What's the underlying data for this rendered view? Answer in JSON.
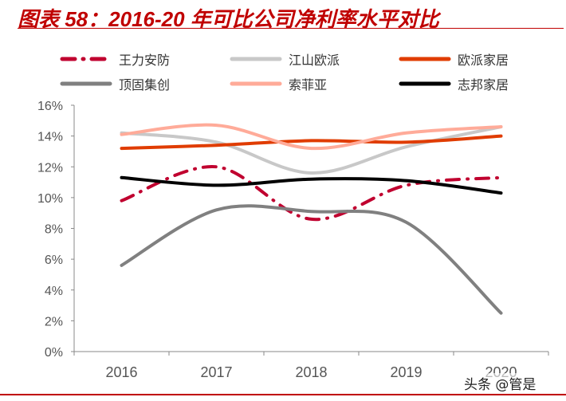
{
  "title": "图表 58：2016-20 年可比公司净利率水平对比",
  "watermark": "头条 @管是",
  "chart_data": {
    "type": "line",
    "title": "图表 58：2016-20 年可比公司净利率水平对比",
    "xlabel": "",
    "ylabel": "",
    "categories": [
      "2016",
      "2017",
      "2018",
      "2019",
      "2020"
    ],
    "ylim": [
      0,
      16
    ],
    "yticks": [
      "0%",
      "2%",
      "4%",
      "6%",
      "8%",
      "10%",
      "12%",
      "14%",
      "16%"
    ],
    "grid": false,
    "legend_position": "top",
    "smooth": true,
    "series": [
      {
        "name": "王力安防",
        "color": "#c0002f",
        "dash": "dashdot",
        "values": [
          9.8,
          12.0,
          8.6,
          10.8,
          11.3
        ]
      },
      {
        "name": "江山欧派",
        "color": "#c8c8c8",
        "dash": "solid",
        "values": [
          14.2,
          13.6,
          11.6,
          13.3,
          14.6
        ]
      },
      {
        "name": "欧派家居",
        "color": "#e03c00",
        "dash": "solid",
        "values": [
          13.2,
          13.4,
          13.7,
          13.6,
          14.0
        ]
      },
      {
        "name": "顶固集创",
        "color": "#808080",
        "dash": "solid",
        "values": [
          5.6,
          9.2,
          9.1,
          8.4,
          2.5
        ]
      },
      {
        "name": "索菲亚",
        "color": "#ffab99",
        "dash": "solid",
        "values": [
          14.1,
          14.7,
          13.2,
          14.2,
          14.6
        ]
      },
      {
        "name": "志邦家居",
        "color": "#000000",
        "dash": "solid",
        "values": [
          11.3,
          10.8,
          11.2,
          11.1,
          10.3
        ]
      }
    ]
  }
}
